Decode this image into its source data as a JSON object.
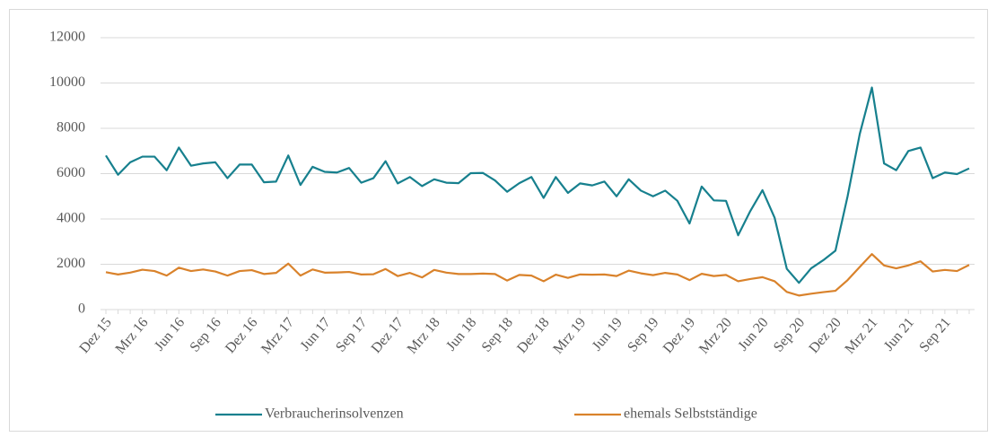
{
  "chart_data": {
    "type": "line",
    "categories": [
      "Dez 15",
      null,
      null,
      "Mrz 16",
      null,
      null,
      "Jun 16",
      null,
      null,
      "Sep 16",
      null,
      null,
      "Dez 16",
      null,
      null,
      "Mrz 17",
      null,
      null,
      "Jun 17",
      null,
      null,
      "Sep 17",
      null,
      null,
      "Dez 17",
      null,
      null,
      "Mrz 18",
      null,
      null,
      "Jun 18",
      null,
      null,
      "Sep 18",
      null,
      null,
      "Dez 18",
      null,
      null,
      "Mrz 19",
      null,
      null,
      "Jun 19",
      null,
      null,
      "Sep 19",
      null,
      null,
      "Dez 19",
      null,
      null,
      "Mrz 20",
      null,
      null,
      "Jun 20",
      null,
      null,
      "Sep 20",
      null,
      null,
      "Dez 20",
      null,
      null,
      "Mrz 21",
      null,
      null,
      "Jun 21",
      null,
      null,
      "Sep 21",
      null,
      null
    ],
    "series": [
      {
        "name": "Verbraucherinsolvenzen",
        "color": "#17808e",
        "values": [
          6800,
          5950,
          6500,
          6750,
          6750,
          6150,
          7150,
          6350,
          6450,
          6500,
          5800,
          6400,
          6400,
          5620,
          5650,
          6800,
          5500,
          6300,
          6080,
          6050,
          6250,
          5600,
          5800,
          6550,
          5570,
          5850,
          5450,
          5750,
          5600,
          5580,
          6020,
          6030,
          5700,
          5200,
          5580,
          5850,
          4930,
          5850,
          5150,
          5570,
          5480,
          5650,
          5000,
          5750,
          5250,
          5000,
          5250,
          4800,
          3800,
          5430,
          4820,
          4800,
          3280,
          4350,
          5270,
          4050,
          1800,
          1180,
          1820,
          2180,
          2600,
          5000,
          7750,
          9800,
          6450,
          6150,
          7000,
          7150,
          5800,
          6050,
          5980,
          6230
        ]
      },
      {
        "name": "ehemals Selbstständige",
        "color": "#d9822b",
        "values": [
          1650,
          1550,
          1630,
          1760,
          1700,
          1500,
          1850,
          1700,
          1770,
          1680,
          1500,
          1700,
          1740,
          1570,
          1620,
          2030,
          1500,
          1770,
          1630,
          1640,
          1660,
          1550,
          1560,
          1790,
          1480,
          1620,
          1420,
          1750,
          1630,
          1570,
          1570,
          1590,
          1570,
          1280,
          1530,
          1500,
          1250,
          1540,
          1400,
          1550,
          1540,
          1550,
          1480,
          1720,
          1600,
          1520,
          1620,
          1550,
          1300,
          1580,
          1480,
          1530,
          1250,
          1350,
          1430,
          1250,
          780,
          620,
          700,
          770,
          830,
          1300,
          1880,
          2450,
          1950,
          1820,
          1950,
          2130,
          1680,
          1750,
          1700,
          1970
        ]
      }
    ],
    "ylim": [
      0,
      12000
    ],
    "yticks": [
      0,
      2000,
      4000,
      6000,
      8000,
      10000,
      12000
    ],
    "grid": true,
    "legend": "bottom"
  }
}
